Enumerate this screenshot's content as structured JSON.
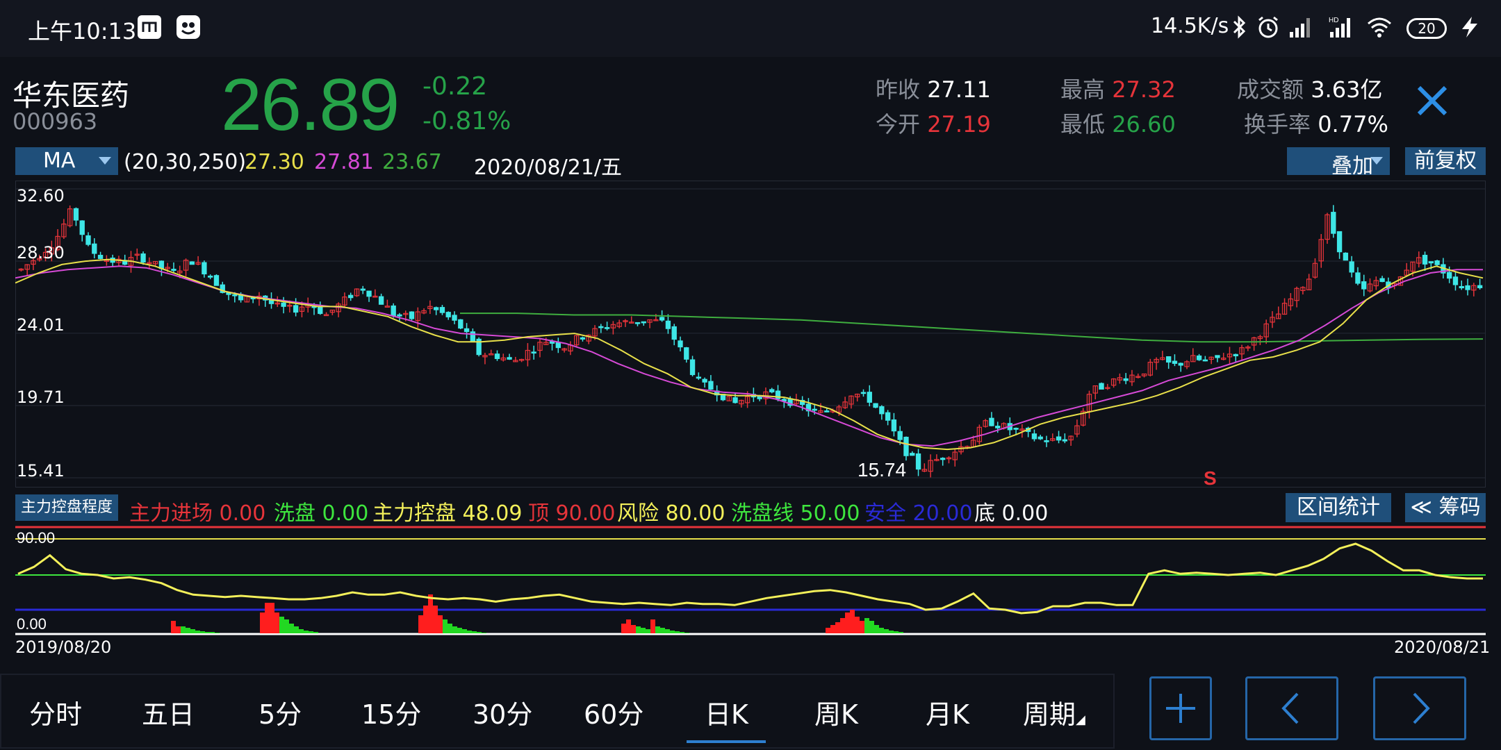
{
  "status_bar": {
    "time": "上午10:13",
    "net_speed": "14.5K/s",
    "battery": "20",
    "icons": [
      "mi-icon",
      "app-icon",
      "bluetooth-icon",
      "alarm-icon",
      "signal-icon",
      "hd-signal-icon",
      "wifi-icon",
      "battery-icon",
      "charging-icon"
    ]
  },
  "stock": {
    "name": "华东医药",
    "code": "000963",
    "price": "26.89",
    "change": "-0.22",
    "change_pct": "-0.81%",
    "prev_close_label": "昨收",
    "prev_close": "27.11",
    "open_label": "今开",
    "open": "27.19",
    "high_label": "最高",
    "high": "27.32",
    "low_label": "最低",
    "low": "26.60",
    "amount_label": "成交额",
    "amount": "3.63亿",
    "turnover_label": "换手率",
    "turnover": "0.77%"
  },
  "ma_row": {
    "select_label": "MA",
    "params": "(20,30,250)",
    "ma20": "27.30",
    "ma30": "27.81",
    "ma250": "23.67",
    "date": "2020/08/21/五",
    "overlay_label": "叠加",
    "fq_label": "前复权"
  },
  "colors": {
    "up": "#e6343a",
    "down": "#3ee6e6",
    "price_green": "#26a349",
    "ma20": "#e8e04a",
    "ma30": "#d64ad6",
    "ma250": "#3fae3f",
    "accent": "#1f4f7a"
  },
  "chart_data": {
    "type": "candlestick",
    "y_axis_labels": [
      "32.60",
      "28.30",
      "24.01",
      "19.71",
      "15.41"
    ],
    "ylim": [
      15.41,
      32.6
    ],
    "x_start": "2019/08/20",
    "x_end": "2020/08/21",
    "low_annotation": "15.74",
    "signal_marker": "S",
    "close_path": [
      27.8,
      28.6,
      29.5,
      31.4,
      29.0,
      28.4,
      28.2,
      28.6,
      28.0,
      27.6,
      28.4,
      27.6,
      26.5,
      25.9,
      26.3,
      25.6,
      25.4,
      25.8,
      25.1,
      25.9,
      26.8,
      26.1,
      25.1,
      24.9,
      25.6,
      25.1,
      24.3,
      22.8,
      22.7,
      22.3,
      23.0,
      23.6,
      23.2,
      23.8,
      24.2,
      24.6,
      24.7,
      24.8,
      24.6,
      22.8,
      21.0,
      20.6,
      19.8,
      20.3,
      20.4,
      20.1,
      19.7,
      19.2,
      19.6,
      20.5,
      20.1,
      18.8,
      17.2,
      15.9,
      16.5,
      17.0,
      17.6,
      18.8,
      18.4,
      18.1,
      17.7,
      17.6,
      17.9,
      20.5,
      21.0,
      21.4,
      21.6,
      22.4,
      22.1,
      22.5,
      22.3,
      22.7,
      23.0,
      24.0,
      25.0,
      26.2,
      27.4,
      30.9,
      28.4,
      26.4,
      27.2,
      26.8,
      28.4,
      28.3,
      27.6,
      26.7,
      26.9
    ],
    "ma20_path": [
      27.0,
      27.6,
      28.1,
      28.3,
      28.4,
      28.3,
      28.0,
      27.5,
      27.0,
      26.5,
      26.2,
      26.0,
      25.8,
      25.6,
      25.6,
      25.3,
      25.0,
      24.4,
      23.9,
      23.5,
      23.5,
      23.6,
      23.8,
      23.9,
      24.0,
      23.7,
      23.0,
      22.2,
      21.6,
      20.8,
      20.4,
      20.3,
      20.3,
      20.2,
      19.9,
      19.5,
      18.8,
      18.0,
      17.5,
      17.2,
      17.1,
      17.2,
      17.5,
      18.0,
      18.6,
      19.0,
      19.3,
      19.6,
      19.9,
      20.3,
      20.8,
      21.4,
      21.9,
      22.4,
      22.6,
      23.0,
      23.5,
      24.6,
      26.0,
      26.9,
      27.6,
      28.0,
      27.6,
      27.3
    ],
    "ma30_path": [
      27.3,
      27.6,
      27.8,
      27.9,
      28.0,
      27.9,
      27.5,
      27.0,
      26.5,
      26.2,
      26.0,
      25.8,
      25.6,
      25.5,
      25.2,
      24.8,
      24.3,
      24.0,
      23.9,
      23.8,
      23.7,
      23.4,
      22.9,
      22.2,
      21.6,
      21.1,
      20.7,
      20.5,
      20.4,
      20.1,
      19.6,
      19.0,
      18.4,
      17.8,
      17.4,
      17.3,
      17.6,
      18.0,
      18.5,
      19.0,
      19.4,
      19.8,
      20.2,
      20.6,
      21.2,
      21.6,
      22.0,
      22.5,
      23.0,
      23.6,
      24.5,
      25.5,
      26.4,
      27.1,
      27.6,
      27.8,
      27.8
    ],
    "ma250_path": [
      25.2,
      25.2,
      25.1,
      25.1,
      25.0,
      24.9,
      24.8,
      24.6,
      24.4,
      24.2,
      24.0,
      23.8,
      23.6,
      23.5,
      23.5,
      23.55,
      23.6,
      23.65,
      23.67
    ]
  },
  "indicator": {
    "select_label": "主力控盘程度",
    "main_in_label": "主力进场",
    "main_in": "0.00",
    "wash_label": "洗盘",
    "wash": "0.00",
    "control_label": "主力控盘",
    "control": "48.09",
    "top_label": "顶",
    "top": "90.00",
    "risk_label": "风险",
    "risk": "80.00",
    "wash_line_label": "洗盘线",
    "wash_line": "50.00",
    "safe_label": "安全",
    "safe": "20.00",
    "bottom_label": "底",
    "bottom": "0.00",
    "range_label": "区间统计",
    "chips_label": "≪ 筹码",
    "y_top": "90.00",
    "y_bottom": "0.00",
    "date_start": "2019/08/20",
    "date_end": "2020/08/21",
    "control_series": [
      52,
      58,
      68,
      56,
      52,
      51,
      48,
      49,
      47,
      44,
      38,
      34,
      33,
      32,
      33,
      32,
      31,
      30,
      30,
      31,
      33,
      36,
      34,
      34,
      36,
      33,
      31,
      30,
      31,
      30,
      28,
      30,
      31,
      33,
      34,
      31,
      28,
      27,
      26,
      27,
      26,
      25,
      27,
      26,
      26,
      25,
      28,
      31,
      33,
      35,
      37,
      38,
      36,
      33,
      30,
      28,
      26,
      21,
      22,
      28,
      35,
      22,
      21,
      18,
      19,
      24,
      24,
      27,
      27,
      25,
      25,
      52,
      55,
      52,
      53,
      52,
      51,
      52,
      53,
      51,
      55,
      59,
      65,
      74,
      78,
      72,
      63,
      55,
      55,
      51,
      49,
      48,
      48
    ]
  },
  "period_tabs": [
    "分时",
    "五日",
    "5分",
    "15分",
    "30分",
    "60分",
    "日K",
    "周K",
    "月K",
    "周期"
  ],
  "active_tab": "日K",
  "nav_buttons": [
    "plus-icon",
    "chevron-left-icon",
    "chevron-right-icon"
  ]
}
